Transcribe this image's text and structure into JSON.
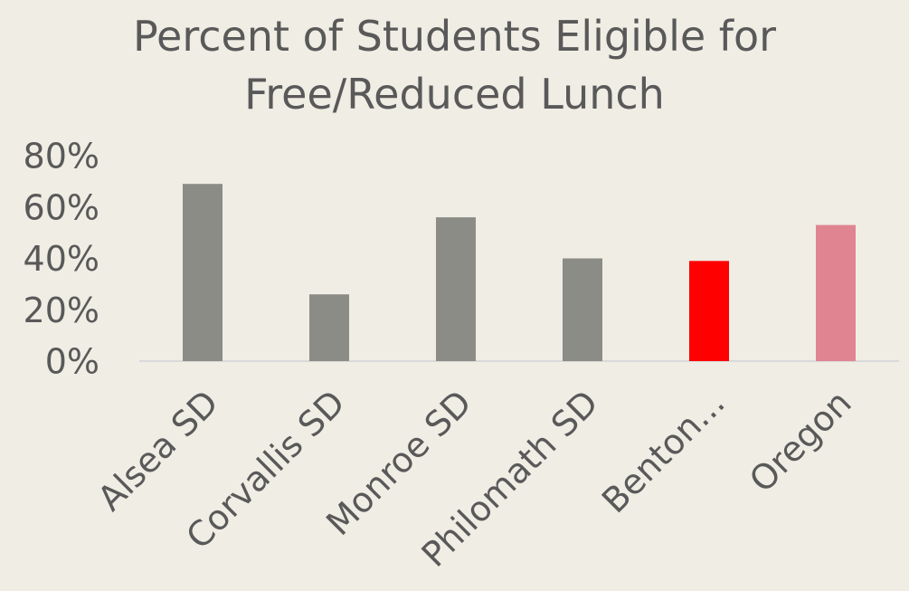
{
  "chart_data": {
    "type": "bar",
    "title": "Percent of Students Eligible for Free/Reduced Lunch",
    "categories": [
      "Alsea SD",
      "Corvallis SD",
      "Monroe SD",
      "Philomath SD",
      "Benton...",
      "Oregon"
    ],
    "values": [
      69,
      26,
      56,
      40,
      39,
      53
    ],
    "colors": [
      "#8c8c86",
      "#8c8c86",
      "#8c8c86",
      "#8c8c86",
      "#ff0000",
      "#e08492"
    ],
    "ylim": [
      0,
      80
    ],
    "yticks": [
      {
        "value": 0,
        "label": "0%"
      },
      {
        "value": 20,
        "label": "20%"
      },
      {
        "value": 40,
        "label": "40%"
      },
      {
        "value": 60,
        "label": "60%"
      },
      {
        "value": 80,
        "label": "80%"
      }
    ],
    "grid": false
  }
}
